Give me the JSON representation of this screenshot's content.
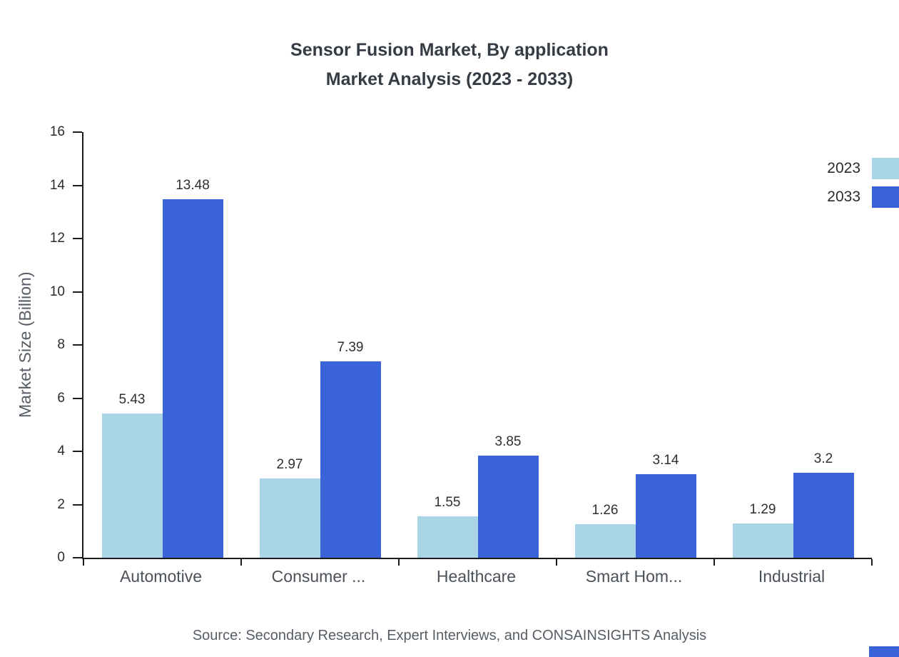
{
  "title": {
    "line1": "Sensor Fusion Market, By application",
    "line2": "Market Analysis (2023 - 2033)"
  },
  "source": "Source: Secondary Research, Expert Interviews, and CONSAINSIGHTS Analysis",
  "chart_data": {
    "type": "bar",
    "title": "Sensor Fusion Market, By application — Market Analysis (2023 - 2033)",
    "categories": [
      "Automotive",
      "Consumer ...",
      "Healthcare",
      "Smart Hom...",
      "Industrial"
    ],
    "series": [
      {
        "name": "2023",
        "color": "#a9d5e7",
        "values": [
          5.43,
          2.97,
          1.55,
          1.26,
          1.29
        ]
      },
      {
        "name": "2033",
        "color": "#3b63d8",
        "values": [
          13.48,
          7.39,
          3.85,
          3.14,
          3.2
        ]
      }
    ],
    "xlabel": "",
    "ylabel": "Market Size (Billion)",
    "ylim": [
      0,
      16
    ],
    "yticks": [
      0,
      2,
      4,
      6,
      8,
      10,
      12,
      14,
      16
    ],
    "grid": false,
    "legend_position": "top-right"
  },
  "colors": {
    "accent_blue": "#3b63d8",
    "light_blue": "#a9d5e7"
  }
}
